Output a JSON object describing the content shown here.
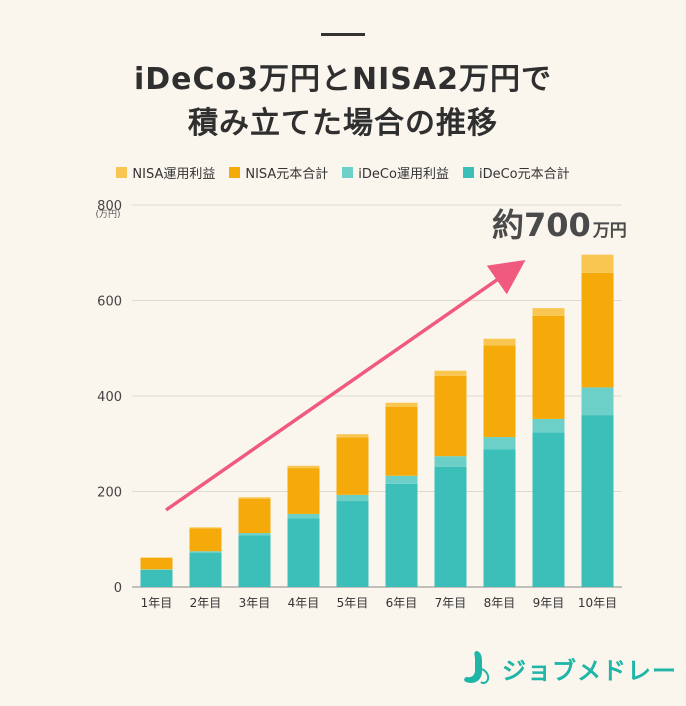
{
  "title": {
    "line1": "iDeCo3万円とNISA2万円で",
    "line2": "積み立てた場合の推移"
  },
  "legend": [
    {
      "label": "NISA運用利益",
      "color": "#f9c651"
    },
    {
      "label": "NISA元本合計",
      "color": "#f5aa0a"
    },
    {
      "label": "iDeCo運用利益",
      "color": "#6dd0c8"
    },
    {
      "label": "iDeCo元本合計",
      "color": "#3bbfb8"
    }
  ],
  "annotation": {
    "value": "約700",
    "unit": "万円"
  },
  "logo": {
    "text": "ジョブメドレー"
  },
  "chart_data": {
    "type": "bar",
    "stacked": true,
    "categories": [
      "1年目",
      "2年目",
      "3年目",
      "4年目",
      "5年目",
      "6年目",
      "7年目",
      "8年目",
      "9年目",
      "10年目"
    ],
    "series": [
      {
        "name": "iDeCo元本合計",
        "color": "#3bbfb8",
        "values": [
          36,
          72,
          108,
          144,
          180,
          216,
          252,
          288,
          324,
          360
        ]
      },
      {
        "name": "iDeCo運用利益",
        "color": "#6dd0c8",
        "values": [
          1,
          3,
          5,
          9,
          13,
          17,
          22,
          26,
          28,
          58
        ]
      },
      {
        "name": "NISA元本合計",
        "color": "#f5aa0a",
        "values": [
          24,
          48,
          72,
          96,
          120,
          144,
          168,
          192,
          216,
          240
        ]
      },
      {
        "name": "NISA運用利益",
        "color": "#f9c651",
        "values": [
          1,
          2,
          3,
          5,
          7,
          9,
          11,
          14,
          16,
          38
        ]
      }
    ],
    "ylabel_unit": "(万円)",
    "ylim": [
      0,
      800
    ],
    "yticks": [
      0,
      200,
      400,
      600,
      800
    ],
    "grid": true,
    "legend_position": "top",
    "trend_arrow_color": "#f05a7e"
  }
}
